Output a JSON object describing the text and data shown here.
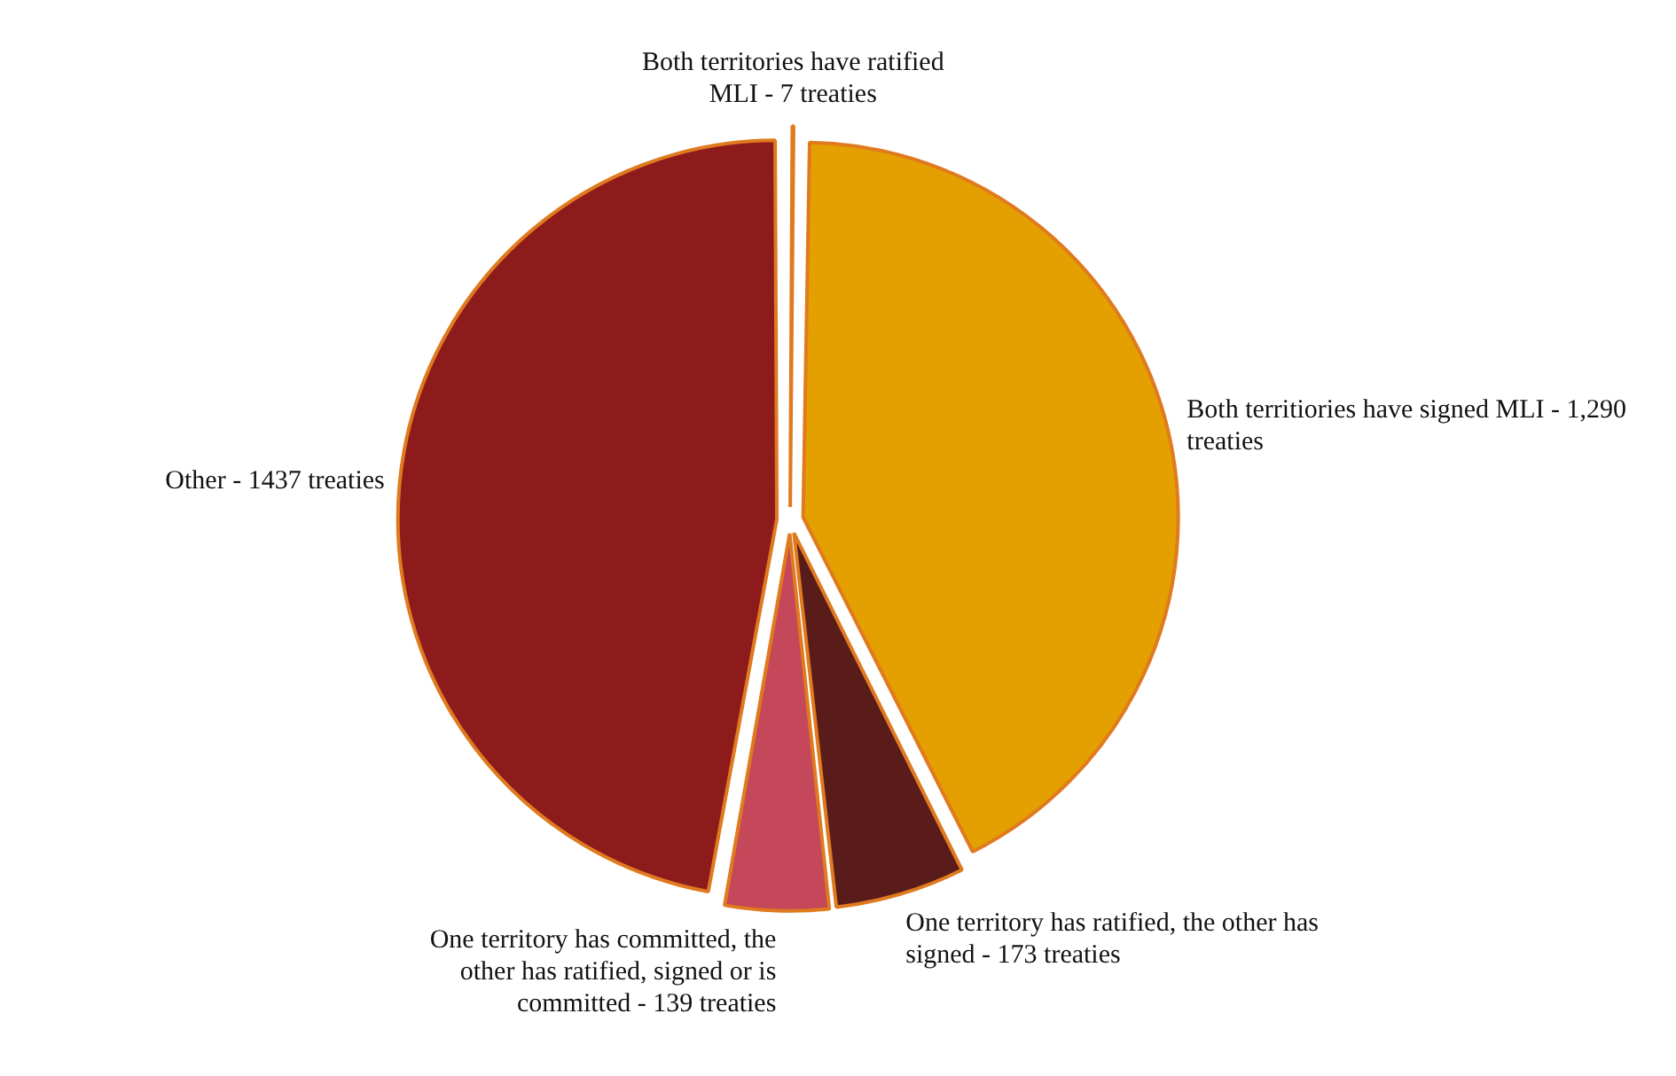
{
  "chart_data": {
    "type": "pie",
    "categories": [
      "Both territories have ratified MLI -",
      "Both territiories have signed MLI -",
      "One territory has ratified, the other has signed -",
      "One territory has committed, the other has ratified, signed or is committed -",
      "Other -"
    ],
    "values": [
      7,
      1290,
      173,
      139,
      1437
    ],
    "value_labels": [
      "7 treaties",
      "1,290 treaties",
      "173 treaties",
      "139 treaties",
      "1437 treaties"
    ],
    "colors": [
      "#e08a10",
      "#e3a000",
      "#5a1c1a",
      "#c4475a",
      "#8e1b1b"
    ]
  }
}
